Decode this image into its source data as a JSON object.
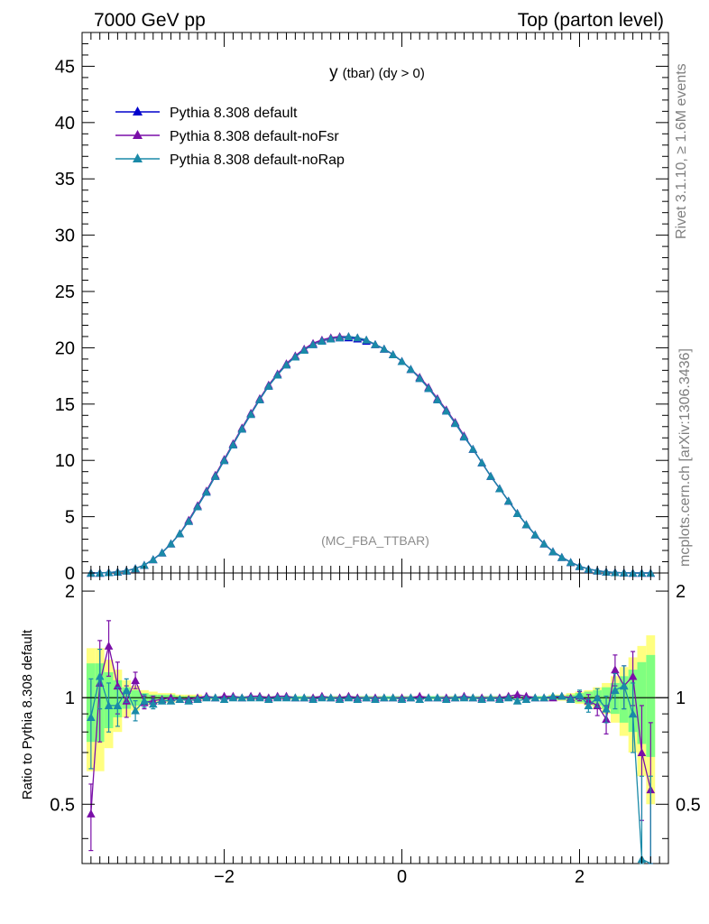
{
  "header": {
    "left": "7000 GeV pp",
    "right": "Top (parton level)"
  },
  "plot": {
    "title_main": "y",
    "title_sub": "(tbar) (dy > 0)",
    "watermark": "(MC_FBA_TTBAR)",
    "side_top": "Rivet 3.1.10, ≥ 1.6M events",
    "side_bottom": "mcplots.cern.ch [arXiv:1306.3436]",
    "ratio_ylabel": "Ratio to Pythia 8.308 default"
  },
  "colors": {
    "default": "#0000cc",
    "noFsr": "#7a0fa8",
    "noRap": "#1a8aa8",
    "band_yellow": "#ffff80",
    "band_green": "#80ff80"
  },
  "chart_data": [
    {
      "type": "line",
      "panel": "main",
      "xlim": [
        -3.6,
        3.0
      ],
      "ylim": [
        0,
        48
      ],
      "x_ticks": [
        "−2",
        "0",
        "2"
      ],
      "y_ticks": [
        "0",
        "5",
        "10",
        "15",
        "20",
        "25",
        "30",
        "35",
        "40",
        "45"
      ],
      "x": [
        -3.5,
        -3.4,
        -3.3,
        -3.2,
        -3.1,
        -3.0,
        -2.9,
        -2.8,
        -2.7,
        -2.6,
        -2.5,
        -2.4,
        -2.3,
        -2.2,
        -2.1,
        -2.0,
        -1.9,
        -1.8,
        -1.7,
        -1.6,
        -1.5,
        -1.4,
        -1.3,
        -1.2,
        -1.1,
        -1.0,
        -0.9,
        -0.8,
        -0.7,
        -0.6,
        -0.5,
        -0.4,
        -0.3,
        -0.2,
        -0.1,
        0.0,
        0.1,
        0.2,
        0.3,
        0.4,
        0.5,
        0.6,
        0.7,
        0.8,
        0.9,
        1.0,
        1.1,
        1.2,
        1.3,
        1.4,
        1.5,
        1.6,
        1.7,
        1.8,
        1.9,
        2.0,
        2.1,
        2.2,
        2.3,
        2.4,
        2.5,
        2.6,
        2.7,
        2.8
      ],
      "series": [
        {
          "name": "Pythia 8.308 default",
          "values": [
            0.0,
            0.0,
            0.05,
            0.1,
            0.2,
            0.4,
            0.7,
            1.2,
            1.8,
            2.6,
            3.5,
            4.6,
            5.9,
            7.2,
            8.6,
            10.0,
            11.4,
            12.8,
            14.1,
            15.4,
            16.6,
            17.6,
            18.5,
            19.2,
            19.8,
            20.3,
            20.6,
            20.8,
            20.9,
            20.9,
            20.8,
            20.6,
            20.3,
            19.9,
            19.4,
            18.8,
            18.1,
            17.3,
            16.4,
            15.4,
            14.4,
            13.3,
            12.1,
            11.0,
            9.8,
            8.6,
            7.5,
            6.4,
            5.3,
            4.3,
            3.4,
            2.6,
            1.9,
            1.4,
            0.95,
            0.6,
            0.35,
            0.2,
            0.1,
            0.05,
            0.02,
            0.0,
            0.0,
            0.0
          ]
        },
        {
          "name": "Pythia 8.308 default-noFsr",
          "values": [
            0.0,
            0.0,
            0.05,
            0.1,
            0.2,
            0.4,
            0.7,
            1.2,
            1.8,
            2.6,
            3.5,
            4.7,
            6.0,
            7.3,
            8.7,
            10.1,
            11.5,
            12.9,
            14.2,
            15.5,
            16.7,
            17.7,
            18.6,
            19.3,
            19.9,
            20.4,
            20.7,
            20.9,
            21.0,
            21.0,
            20.9,
            20.7,
            20.3,
            19.9,
            19.4,
            18.8,
            18.1,
            17.4,
            16.5,
            15.5,
            14.5,
            13.4,
            12.2,
            11.0,
            9.8,
            8.6,
            7.5,
            6.4,
            5.3,
            4.3,
            3.4,
            2.6,
            1.9,
            1.4,
            0.95,
            0.6,
            0.35,
            0.2,
            0.1,
            0.05,
            0.02,
            0.0,
            0.0,
            0.0
          ]
        },
        {
          "name": "Pythia 8.308 default-noRap",
          "values": [
            0.0,
            0.0,
            0.05,
            0.1,
            0.2,
            0.4,
            0.7,
            1.2,
            1.8,
            2.6,
            3.5,
            4.6,
            5.9,
            7.2,
            8.6,
            10.0,
            11.4,
            12.8,
            14.1,
            15.4,
            16.6,
            17.6,
            18.5,
            19.2,
            19.8,
            20.3,
            20.6,
            20.8,
            20.9,
            21.0,
            20.9,
            20.7,
            20.3,
            19.9,
            19.4,
            18.8,
            18.1,
            17.3,
            16.4,
            15.4,
            14.4,
            13.3,
            12.1,
            11.0,
            9.8,
            8.6,
            7.5,
            6.4,
            5.3,
            4.3,
            3.4,
            2.6,
            1.9,
            1.4,
            0.95,
            0.6,
            0.35,
            0.2,
            0.1,
            0.05,
            0.02,
            0.0,
            0.0,
            0.0
          ]
        }
      ]
    },
    {
      "type": "line",
      "panel": "ratio",
      "xlim": [
        -3.6,
        3.0
      ],
      "ylim": [
        0.34,
        2.25
      ],
      "y_ticks": [
        "0.5",
        "1",
        "2"
      ],
      "x": [
        -3.5,
        -3.4,
        -3.3,
        -3.2,
        -3.1,
        -3.0,
        -2.9,
        -2.8,
        -2.7,
        -2.6,
        -2.5,
        -2.4,
        -2.3,
        -2.2,
        -2.1,
        -2.0,
        -1.9,
        -1.8,
        -1.7,
        -1.6,
        -1.5,
        -1.4,
        -1.3,
        -1.2,
        -1.1,
        -1.0,
        -0.9,
        -0.8,
        -0.7,
        -0.6,
        -0.5,
        -0.4,
        -0.3,
        -0.2,
        -0.1,
        0.0,
        0.1,
        0.2,
        0.3,
        0.4,
        0.5,
        0.6,
        0.7,
        0.8,
        0.9,
        1.0,
        1.1,
        1.2,
        1.3,
        1.4,
        1.5,
        1.6,
        1.7,
        1.8,
        1.9,
        2.0,
        2.1,
        2.2,
        2.3,
        2.4,
        2.5,
        2.6,
        2.7,
        2.8
      ],
      "bands": {
        "yellow_half": [
          0.38,
          0.38,
          0.28,
          0.2,
          0.12,
          0.08,
          0.05,
          0.04,
          0.03,
          0.03,
          0.02,
          0.02,
          0.02,
          0.01,
          0.01,
          0.01,
          0.01,
          0.01,
          0.01,
          0.01,
          0.01,
          0.01,
          0.01,
          0.01,
          0.01,
          0.01,
          0.01,
          0.01,
          0.01,
          0.01,
          0.01,
          0.01,
          0.01,
          0.01,
          0.01,
          0.01,
          0.01,
          0.01,
          0.01,
          0.01,
          0.01,
          0.01,
          0.01,
          0.01,
          0.01,
          0.01,
          0.01,
          0.01,
          0.01,
          0.01,
          0.01,
          0.01,
          0.02,
          0.02,
          0.03,
          0.04,
          0.05,
          0.07,
          0.1,
          0.15,
          0.22,
          0.3,
          0.4,
          0.5
        ],
        "green_half": [
          0.25,
          0.25,
          0.18,
          0.12,
          0.07,
          0.05,
          0.03,
          0.02,
          0.02,
          0.02,
          0.01,
          0.01,
          0.01,
          0.01,
          0.01,
          0.01,
          0.01,
          0.01,
          0.01,
          0.01,
          0.01,
          0.01,
          0.01,
          0.01,
          0.01,
          0.01,
          0.01,
          0.01,
          0.01,
          0.01,
          0.01,
          0.01,
          0.01,
          0.01,
          0.01,
          0.01,
          0.01,
          0.01,
          0.01,
          0.01,
          0.01,
          0.01,
          0.01,
          0.01,
          0.01,
          0.01,
          0.01,
          0.01,
          0.01,
          0.01,
          0.01,
          0.01,
          0.01,
          0.01,
          0.02,
          0.03,
          0.04,
          0.05,
          0.07,
          0.1,
          0.15,
          0.2,
          0.26,
          0.32
        ]
      },
      "series": [
        {
          "name": "Pythia 8.308 default-noFsr",
          "values": [
            0.47,
            1.1,
            1.4,
            1.08,
            0.98,
            1.12,
            0.97,
            0.98,
            0.99,
            1.0,
            0.99,
            0.99,
            1.0,
            1.01,
            1.0,
            1.01,
            1.01,
            1.0,
            1.01,
            1.01,
            1.0,
            1.01,
            1.01,
            1.0,
            1.0,
            1.0,
            1.01,
            1.0,
            1.0,
            1.01,
            1.0,
            1.0,
            1.0,
            1.0,
            1.0,
            1.0,
            1.0,
            1.01,
            1.0,
            1.0,
            1.0,
            1.0,
            1.01,
            1.0,
            1.0,
            1.0,
            1.0,
            1.01,
            1.02,
            1.01,
            1.0,
            1.0,
            1.0,
            1.01,
            1.0,
            1.01,
            0.98,
            0.95,
            0.87,
            1.2,
            1.08,
            1.15,
            0.7,
            0.55
          ],
          "err": [
            0.1,
            0.35,
            0.25,
            0.18,
            0.1,
            0.06,
            0.04,
            0.03,
            0.02,
            0.02,
            0.01,
            0.01,
            0.01,
            0.01,
            0.01,
            0.01,
            0.01,
            0.01,
            0.01,
            0.01,
            0.01,
            0.01,
            0.01,
            0.01,
            0.01,
            0.01,
            0.01,
            0.01,
            0.01,
            0.01,
            0.01,
            0.01,
            0.01,
            0.01,
            0.01,
            0.01,
            0.01,
            0.01,
            0.01,
            0.01,
            0.01,
            0.01,
            0.01,
            0.01,
            0.01,
            0.01,
            0.01,
            0.01,
            0.01,
            0.01,
            0.01,
            0.01,
            0.02,
            0.02,
            0.02,
            0.03,
            0.04,
            0.06,
            0.08,
            0.12,
            0.15,
            0.2,
            0.25,
            0.3
          ]
        },
        {
          "name": "Pythia 8.308 default-noRap",
          "values": [
            0.88,
            1.15,
            0.95,
            0.95,
            1.05,
            0.92,
            0.98,
            0.96,
            0.98,
            0.98,
            0.99,
            0.98,
            0.99,
            1.0,
            1.0,
            0.99,
            1.0,
            1.0,
            1.0,
            1.0,
            0.99,
            1.0,
            1.0,
            1.0,
            1.0,
            0.99,
            1.0,
            1.0,
            0.99,
            1.0,
            0.99,
            1.0,
            0.99,
            1.0,
            1.0,
            0.99,
            1.0,
            0.99,
            1.0,
            1.0,
            0.99,
            1.0,
            1.0,
            1.0,
            0.99,
            1.0,
            0.99,
            1.0,
            0.98,
            0.99,
            1.0,
            1.0,
            1.01,
            1.01,
            0.99,
            1.02,
            0.95,
            1.0,
            0.93,
            1.05,
            1.08,
            0.9,
            0.35,
            0.3
          ],
          "err": [
            0.25,
            0.22,
            0.15,
            0.12,
            0.08,
            0.06,
            0.04,
            0.03,
            0.02,
            0.02,
            0.01,
            0.01,
            0.01,
            0.01,
            0.01,
            0.01,
            0.01,
            0.01,
            0.01,
            0.01,
            0.01,
            0.01,
            0.01,
            0.01,
            0.01,
            0.01,
            0.01,
            0.01,
            0.01,
            0.01,
            0.01,
            0.01,
            0.01,
            0.01,
            0.01,
            0.01,
            0.01,
            0.01,
            0.01,
            0.01,
            0.01,
            0.01,
            0.01,
            0.01,
            0.01,
            0.01,
            0.01,
            0.01,
            0.01,
            0.01,
            0.01,
            0.01,
            0.02,
            0.02,
            0.02,
            0.03,
            0.04,
            0.06,
            0.08,
            0.12,
            0.15,
            0.2,
            0.25,
            0.3
          ]
        }
      ]
    }
  ]
}
